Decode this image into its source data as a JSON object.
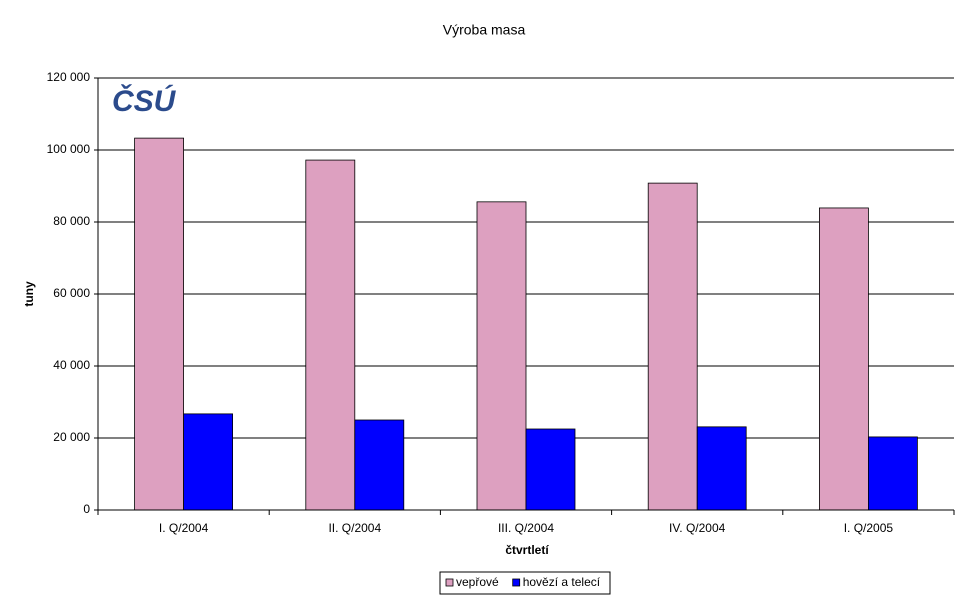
{
  "chart_data": {
    "type": "bar",
    "title": "Výroba masa",
    "annotation": "ČSÚ",
    "x_label": "čtvrtletí",
    "y_label": "tuny",
    "categories": [
      "I. Q/2004",
      "II. Q/2004",
      "III. Q/2004",
      "IV. Q/2004",
      "I. Q/2005"
    ],
    "series": [
      {
        "name": "vepřové",
        "color": "#dda0c0",
        "values": [
          103300,
          97200,
          85600,
          90800,
          83900
        ]
      },
      {
        "name": "hovězí a telecí",
        "color": "#0000ff",
        "values": [
          26700,
          25000,
          22500,
          23100,
          20300
        ]
      }
    ],
    "ylim": [
      0,
      120000
    ],
    "yticks": [
      0,
      {
        "value": 20000,
        "label": "20 000"
      },
      {
        "value": 40000,
        "label": "40 000"
      },
      {
        "value": 60000,
        "label": "60 000"
      },
      {
        "value": 80000,
        "label": "80 000"
      },
      {
        "value": 100000,
        "label": "100 000"
      },
      {
        "value": 120000,
        "label": "120 000"
      }
    ],
    "grid": true,
    "legend": "bottom"
  }
}
